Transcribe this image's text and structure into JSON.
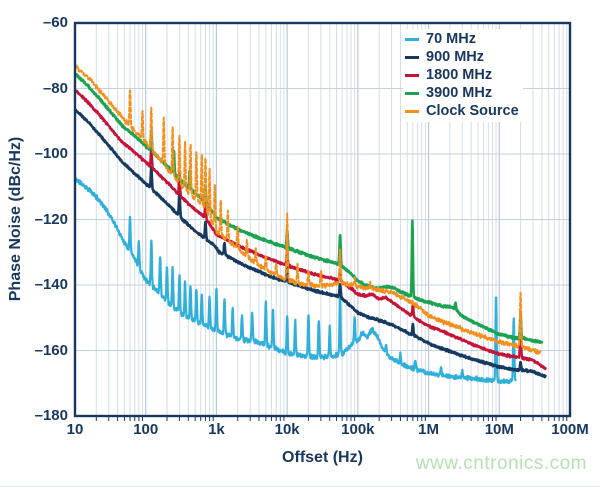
{
  "watermark": "www.cntronics.com",
  "colors": {
    "text_navy": "#17375e",
    "frame": "#17375e",
    "grid_minor": "#d3dee8",
    "grid_decade": "#b7c8d8",
    "grid_horizontal": "#c3d2e0",
    "watermark_green": "#b5e1b1",
    "background": "#ffffff"
  },
  "chart_data": {
    "type": "line",
    "title": "",
    "xlabel": "Offset (Hz)",
    "ylabel": "Phase Noise (dBc/Hz)",
    "x_scale": "log",
    "xlim": [
      10,
      100000000
    ],
    "ylim": [
      -180,
      -60
    ],
    "grid": true,
    "legend_position": "top-right",
    "x_tick_labels": [
      "10",
      "100",
      "1k",
      "10k",
      "100k",
      "1M",
      "10M",
      "100M"
    ],
    "y_tick_labels": [
      "–60",
      "–80",
      "–100",
      "–120",
      "–140",
      "–160",
      "–180"
    ],
    "y_tick_values": [
      -60,
      -80,
      -100,
      -120,
      -140,
      -160,
      -180
    ],
    "series": [
      {
        "name": "70 MHz",
        "color": "#2fafda",
        "dashed": false,
        "width": 2.2,
        "noise_db": 0.8,
        "seed": 11,
        "points": [
          [
            10,
            -107.5
          ],
          [
            15,
            -110.5
          ],
          [
            22,
            -114
          ],
          [
            33,
            -119.5
          ],
          [
            47,
            -126
          ],
          [
            70,
            -132
          ],
          [
            100,
            -138.5
          ],
          [
            150,
            -142
          ],
          [
            220,
            -146
          ],
          [
            330,
            -149
          ],
          [
            500,
            -151
          ],
          [
            700,
            -152.5
          ],
          [
            1000,
            -154
          ],
          [
            2000,
            -156.5
          ],
          [
            4000,
            -157.5
          ],
          [
            7000,
            -159.5
          ],
          [
            10000,
            -161
          ],
          [
            15000,
            -161.5
          ],
          [
            25000,
            -162
          ],
          [
            40000,
            -162
          ],
          [
            60000,
            -161
          ],
          [
            80000,
            -158.5
          ],
          [
            100000,
            -157
          ],
          [
            115000,
            -154.5
          ],
          [
            135000,
            -156
          ],
          [
            160000,
            -153.5
          ],
          [
            190000,
            -156
          ],
          [
            230000,
            -160
          ],
          [
            300000,
            -162.5
          ],
          [
            450000,
            -164.5
          ],
          [
            700000,
            -166
          ],
          [
            1000000,
            -167
          ],
          [
            2000000,
            -168
          ],
          [
            4000000,
            -168.5
          ],
          [
            7000000,
            -169
          ],
          [
            12000000,
            -169.5
          ],
          [
            17000000,
            -169
          ]
        ],
        "spikes": [
          [
            60,
            -119
          ],
          [
            80,
            -127
          ],
          [
            120,
            -126
          ],
          [
            160,
            -131
          ],
          [
            200,
            -134
          ],
          [
            240,
            -135
          ],
          [
            300,
            -137
          ],
          [
            360,
            -139
          ],
          [
            430,
            -140
          ],
          [
            520,
            -141
          ],
          [
            620,
            -143
          ],
          [
            800,
            -144
          ],
          [
            1000,
            -141
          ],
          [
            1300,
            -144
          ],
          [
            1700,
            -147
          ],
          [
            2300,
            -149
          ],
          [
            3200,
            -148
          ],
          [
            5000,
            -145
          ],
          [
            6300,
            -147
          ],
          [
            10000,
            -150
          ],
          [
            13000,
            -151
          ],
          [
            20000,
            -149
          ],
          [
            28000,
            -151
          ],
          [
            40000,
            -153
          ],
          [
            56000,
            -144
          ],
          [
            90000,
            -150
          ],
          [
            250000,
            -158
          ],
          [
            400000,
            -161
          ],
          [
            650000,
            -163
          ],
          [
            1500000,
            -165
          ],
          [
            3000000,
            -166
          ],
          [
            9000000,
            -143
          ],
          [
            16000000,
            -150
          ]
        ]
      },
      {
        "name": "900 MHz",
        "color": "#16395f",
        "dashed": false,
        "width": 2.6,
        "noise_db": 0.4,
        "seed": 23,
        "points": [
          [
            10,
            -86.5
          ],
          [
            15,
            -90
          ],
          [
            22,
            -94
          ],
          [
            33,
            -98.5
          ],
          [
            47,
            -102.5
          ],
          [
            70,
            -106
          ],
          [
            100,
            -109
          ],
          [
            150,
            -112.5
          ],
          [
            220,
            -116
          ],
          [
            330,
            -120
          ],
          [
            500,
            -123.5
          ],
          [
            700,
            -126
          ],
          [
            900,
            -127.5
          ],
          [
            1100,
            -130
          ],
          [
            1500,
            -131.5
          ],
          [
            2000,
            -133
          ],
          [
            3000,
            -134.8
          ],
          [
            5000,
            -136.8
          ],
          [
            7000,
            -138
          ],
          [
            10000,
            -139
          ],
          [
            15000,
            -140.3
          ],
          [
            25000,
            -141.8
          ],
          [
            40000,
            -142.8
          ],
          [
            56000,
            -143.6
          ],
          [
            80000,
            -146.5
          ],
          [
            100000,
            -148.5
          ],
          [
            150000,
            -150
          ],
          [
            220000,
            -151
          ],
          [
            330000,
            -152.5
          ],
          [
            500000,
            -154.5
          ],
          [
            700000,
            -156
          ],
          [
            1000000,
            -157.8
          ],
          [
            1500000,
            -159.3
          ],
          [
            2500000,
            -161
          ],
          [
            4000000,
            -162.5
          ],
          [
            7000000,
            -164
          ],
          [
            10000000,
            -165
          ],
          [
            15000000,
            -165.8
          ],
          [
            22000000,
            -166
          ],
          [
            30000000,
            -166.5
          ],
          [
            45000000,
            -168
          ]
        ],
        "spikes": [
          [
            120,
            -104
          ],
          [
            300,
            -112
          ],
          [
            700,
            -121
          ],
          [
            1300,
            -127
          ],
          [
            10000,
            -134.5
          ],
          [
            56000,
            -139.5
          ],
          [
            600000,
            -152
          ],
          [
            20000000,
            -163.5
          ]
        ]
      },
      {
        "name": "1800 MHz",
        "color": "#c51236",
        "dashed": false,
        "width": 2.4,
        "noise_db": 0.45,
        "seed": 37,
        "points": [
          [
            10,
            -80.5
          ],
          [
            15,
            -84
          ],
          [
            22,
            -88
          ],
          [
            33,
            -92.5
          ],
          [
            47,
            -96.5
          ],
          [
            70,
            -99.5
          ],
          [
            100,
            -102.5
          ],
          [
            150,
            -106
          ],
          [
            220,
            -109.5
          ],
          [
            330,
            -113.5
          ],
          [
            500,
            -117
          ],
          [
            700,
            -119.5
          ],
          [
            1000,
            -124.5
          ],
          [
            1500,
            -126.5
          ],
          [
            2000,
            -128
          ],
          [
            3000,
            -129.6
          ],
          [
            5000,
            -131.6
          ],
          [
            7000,
            -132.8
          ],
          [
            10000,
            -134
          ],
          [
            15000,
            -135.3
          ],
          [
            25000,
            -136.8
          ],
          [
            40000,
            -137.8
          ],
          [
            56000,
            -138.6
          ],
          [
            80000,
            -141
          ],
          [
            100000,
            -142.8
          ],
          [
            130000,
            -143.3
          ],
          [
            160000,
            -142.8
          ],
          [
            200000,
            -144.3
          ],
          [
            250000,
            -143.8
          ],
          [
            330000,
            -145.8
          ],
          [
            500000,
            -148.5
          ],
          [
            700000,
            -150.5
          ],
          [
            1000000,
            -152.5
          ],
          [
            1500000,
            -154
          ],
          [
            2500000,
            -156
          ],
          [
            4000000,
            -158
          ],
          [
            7000000,
            -160
          ],
          [
            10000000,
            -161
          ],
          [
            15000000,
            -161.8
          ],
          [
            22000000,
            -162.3
          ],
          [
            30000000,
            -163
          ],
          [
            45000000,
            -165.5
          ]
        ],
        "spikes": [
          [
            120,
            -98
          ],
          [
            300,
            -106
          ],
          [
            700,
            -115
          ],
          [
            10000,
            -129
          ],
          [
            56000,
            -135.5
          ],
          [
            600000,
            -145.5
          ],
          [
            20000000,
            -152.5
          ]
        ]
      },
      {
        "name": "3900 MHz",
        "color": "#1ca351",
        "dashed": false,
        "width": 2.6,
        "noise_db": 0.45,
        "seed": 53,
        "points": [
          [
            10,
            -75.5
          ],
          [
            15,
            -79
          ],
          [
            22,
            -83
          ],
          [
            33,
            -87.5
          ],
          [
            47,
            -91.5
          ],
          [
            70,
            -94.5
          ],
          [
            100,
            -97.5
          ],
          [
            150,
            -101
          ],
          [
            220,
            -104.5
          ],
          [
            330,
            -108.5
          ],
          [
            500,
            -112
          ],
          [
            700,
            -114.5
          ],
          [
            1000,
            -119.5
          ],
          [
            1500,
            -121.5
          ],
          [
            2000,
            -123
          ],
          [
            3000,
            -124.6
          ],
          [
            5000,
            -126.4
          ],
          [
            7000,
            -127.5
          ],
          [
            10000,
            -128.6
          ],
          [
            15000,
            -130
          ],
          [
            25000,
            -131.6
          ],
          [
            40000,
            -132.8
          ],
          [
            56000,
            -133.8
          ],
          [
            80000,
            -136.5
          ],
          [
            100000,
            -138.8
          ],
          [
            130000,
            -140
          ],
          [
            180000,
            -141
          ],
          [
            250000,
            -140.5
          ],
          [
            330000,
            -141
          ],
          [
            400000,
            -142
          ],
          [
            500000,
            -143
          ],
          [
            700000,
            -144.3
          ],
          [
            1000000,
            -145.3
          ],
          [
            1600000,
            -146.5
          ],
          [
            2200000,
            -146.8
          ],
          [
            3000000,
            -149.5
          ],
          [
            4500000,
            -151.5
          ],
          [
            7000000,
            -153.5
          ],
          [
            10000000,
            -155
          ],
          [
            15000000,
            -156
          ],
          [
            22000000,
            -156.3
          ],
          [
            30000000,
            -157
          ],
          [
            40000000,
            -157.5
          ]
        ],
        "spikes": [
          [
            120,
            -93
          ],
          [
            250,
            -99
          ],
          [
            420,
            -105
          ],
          [
            700,
            -110
          ],
          [
            10000,
            -123
          ],
          [
            56000,
            -124.5
          ],
          [
            590000,
            -120.5
          ],
          [
            2400000,
            -145.5
          ],
          [
            20000000,
            -148.5
          ]
        ]
      },
      {
        "name": "Clock Source",
        "color": "#f3901d",
        "dashed": true,
        "width": 2.0,
        "noise_db": 0.8,
        "seed": 71,
        "points": [
          [
            10,
            -73
          ],
          [
            15,
            -76.5
          ],
          [
            22,
            -80.5
          ],
          [
            33,
            -85
          ],
          [
            47,
            -89
          ],
          [
            70,
            -93
          ],
          [
            100,
            -96.5
          ],
          [
            150,
            -101
          ],
          [
            220,
            -105.5
          ],
          [
            330,
            -110
          ],
          [
            500,
            -113.5
          ],
          [
            700,
            -117
          ],
          [
            1000,
            -123.5
          ],
          [
            1500,
            -126.5
          ],
          [
            2000,
            -129
          ],
          [
            3000,
            -132
          ],
          [
            5000,
            -135.5
          ],
          [
            7000,
            -137
          ],
          [
            10000,
            -138.5
          ],
          [
            15000,
            -139.6
          ],
          [
            25000,
            -140.3
          ],
          [
            40000,
            -140
          ],
          [
            56000,
            -139.3
          ],
          [
            80000,
            -140
          ],
          [
            100000,
            -140.6
          ],
          [
            150000,
            -141
          ],
          [
            220000,
            -141.6
          ],
          [
            330000,
            -142.6
          ],
          [
            500000,
            -144.5
          ],
          [
            700000,
            -146.5
          ],
          [
            1000000,
            -149.3
          ],
          [
            1500000,
            -151
          ],
          [
            2500000,
            -152.8
          ],
          [
            4000000,
            -154.5
          ],
          [
            7000000,
            -156.3
          ],
          [
            10000000,
            -157.3
          ],
          [
            15000000,
            -158.3
          ],
          [
            22000000,
            -159
          ],
          [
            30000000,
            -160
          ],
          [
            38000000,
            -160.8
          ]
        ],
        "spikes": [
          [
            60,
            -80
          ],
          [
            90,
            -87
          ],
          [
            120,
            -85.5
          ],
          [
            180,
            -88.5
          ],
          [
            240,
            -92
          ],
          [
            300,
            -94
          ],
          [
            360,
            -96
          ],
          [
            430,
            -97
          ],
          [
            520,
            -99
          ],
          [
            620,
            -100
          ],
          [
            700,
            -100.5
          ],
          [
            800,
            -105
          ],
          [
            950,
            -110
          ],
          [
            1150,
            -114
          ],
          [
            1450,
            -117.5
          ],
          [
            2000,
            -122
          ],
          [
            2700,
            -126
          ],
          [
            3600,
            -129
          ],
          [
            5000,
            -131
          ],
          [
            7000,
            -133.5
          ],
          [
            10000,
            -118
          ],
          [
            14000,
            -133.5
          ],
          [
            20000,
            -135.5
          ],
          [
            30000,
            -135.5
          ],
          [
            56000,
            -129
          ],
          [
            90000,
            -138
          ],
          [
            150000,
            -139.5
          ],
          [
            20000000,
            -142
          ]
        ]
      }
    ]
  }
}
